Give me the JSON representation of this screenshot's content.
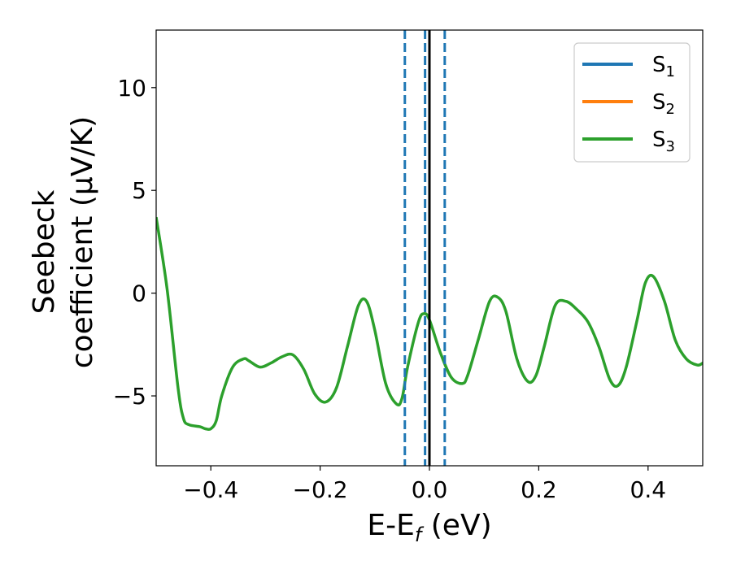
{
  "chart_data": {
    "type": "line",
    "title": "",
    "xlabel": {
      "main": "E-E",
      "sub": "f",
      "suffix": " (eV)"
    },
    "ylabel": {
      "line1": "Seebeck",
      "line2": "coefficient  (μV/K)"
    },
    "xlim": [
      -0.5,
      0.5
    ],
    "ylim": [
      -8.4,
      12.8
    ],
    "xticks": [
      -0.4,
      -0.2,
      0.0,
      0.2,
      0.4
    ],
    "xtick_labels": [
      "−0.4",
      "−0.2",
      "0.0",
      "0.2",
      "0.4"
    ],
    "yticks": [
      -5,
      0,
      5,
      10
    ],
    "ytick_labels": [
      "−5",
      "0",
      "5",
      "10"
    ],
    "grid": false,
    "legend_position": "top-right",
    "legend": [
      {
        "main": "S",
        "sub": "1",
        "color": "#1f77b4"
      },
      {
        "main": "S",
        "sub": "2",
        "color": "#ff7f0e"
      },
      {
        "main": "S",
        "sub": "3",
        "color": "#2ca02c"
      }
    ],
    "series": [
      {
        "color": "#2ca02c",
        "x": [
          -0.5,
          -0.48,
          -0.46,
          -0.45,
          -0.44,
          -0.42,
          -0.41,
          -0.4,
          -0.39,
          -0.38,
          -0.36,
          -0.34,
          -0.33,
          -0.31,
          -0.29,
          -0.27,
          -0.25,
          -0.23,
          -0.21,
          -0.19,
          -0.17,
          -0.15,
          -0.13,
          -0.115,
          -0.1,
          -0.08,
          -0.06,
          -0.05,
          -0.04,
          -0.02,
          -0.01,
          0.0,
          0.02,
          0.04,
          0.06,
          0.07,
          0.09,
          0.11,
          0.125,
          0.14,
          0.16,
          0.18,
          0.195,
          0.21,
          0.23,
          0.25,
          0.27,
          0.29,
          0.31,
          0.33,
          0.345,
          0.36,
          0.38,
          0.395,
          0.41,
          0.43,
          0.45,
          0.47,
          0.49,
          0.5
        ],
        "y": [
          3.7,
          0.2,
          -4.6,
          -6.1,
          -6.4,
          -6.5,
          -6.6,
          -6.6,
          -6.2,
          -5.0,
          -3.6,
          -3.2,
          -3.3,
          -3.6,
          -3.4,
          -3.1,
          -3.0,
          -3.7,
          -4.9,
          -5.3,
          -4.6,
          -2.6,
          -0.6,
          -0.4,
          -1.8,
          -4.4,
          -5.4,
          -5.1,
          -3.6,
          -1.4,
          -1.0,
          -1.3,
          -2.9,
          -4.1,
          -4.4,
          -4.0,
          -2.2,
          -0.4,
          -0.2,
          -0.9,
          -3.2,
          -4.3,
          -4.0,
          -2.6,
          -0.6,
          -0.4,
          -0.8,
          -1.4,
          -2.6,
          -4.2,
          -4.5,
          -3.6,
          -1.3,
          0.5,
          0.8,
          -0.4,
          -2.3,
          -3.2,
          -3.5,
          -3.4
        ]
      }
    ],
    "vlines": [
      {
        "x": -0.045,
        "style": "dashed",
        "color": "#1f77b4"
      },
      {
        "x": -0.008,
        "style": "dashed",
        "color": "#1f77b4"
      },
      {
        "x": 0.028,
        "style": "dashed",
        "color": "#1f77b4"
      },
      {
        "x": 0.0,
        "style": "solid",
        "color": "#000000"
      }
    ]
  }
}
